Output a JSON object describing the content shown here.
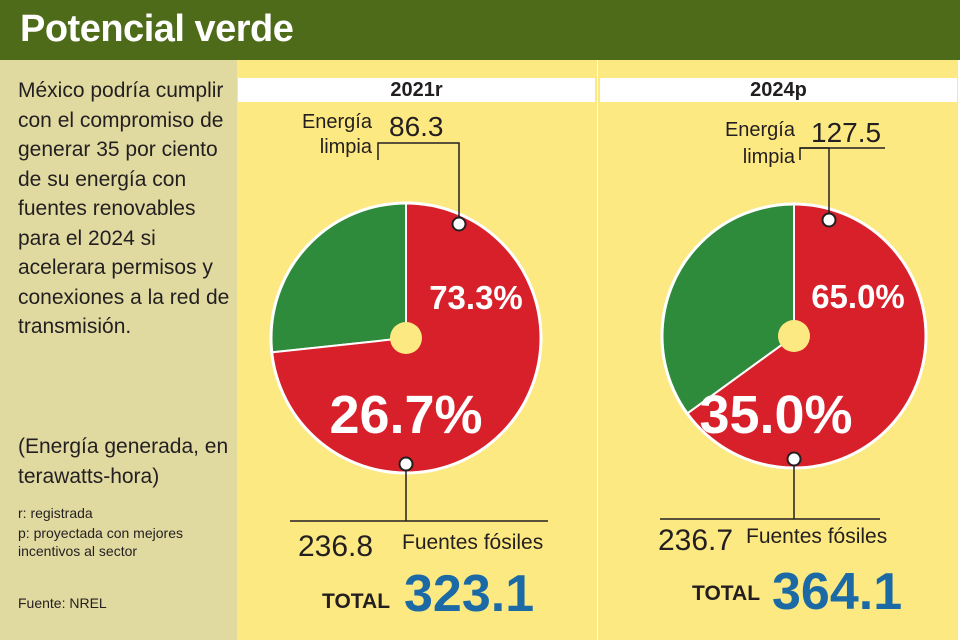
{
  "header": {
    "title": "Potencial verde"
  },
  "sidebar": {
    "intro": "México podría cumplir con el compromiso de generar 35 por ciento de su energía con fuentes renovables para el 2024 si acelerara permisos y conexiones a la red de transmisión.",
    "units_note": "(Energía generada, en terawatts-hora)",
    "legend_r": "r: registrada",
    "legend_p": "p: proyectada con mejores incentivos al sector",
    "source": "Fuente: NREL"
  },
  "colors": {
    "header": "#4e6b1a",
    "sidebar": "#e0d9a0",
    "panel": "#fde982",
    "clean": "#2e8b3c",
    "fossil": "#d7202a",
    "total": "#1b6aa5"
  },
  "chart_data": [
    {
      "type": "pie",
      "title": "2021r",
      "clean_label_line1": "Energía",
      "clean_label_line2": "limpia",
      "fossil_label": "Fuentes fósiles",
      "total_label": "TOTAL",
      "clean_value": "86.3",
      "fossil_value": "236.8",
      "total_value": "323.1",
      "slices": [
        {
          "name": "Energía limpia",
          "value": 86.3,
          "percent": 26.7,
          "percent_label": "26.7%",
          "color": "#2e8b3c"
        },
        {
          "name": "Fuentes fósiles",
          "value": 236.8,
          "percent": 73.3,
          "percent_label": "73.3%",
          "color": "#d7202a"
        }
      ]
    },
    {
      "type": "pie",
      "title": "2024p",
      "clean_label_line1": "Energía",
      "clean_label_line2": "limpia",
      "fossil_label": "Fuentes fósiles",
      "total_label": "TOTAL",
      "clean_value": "127.5",
      "fossil_value": "236.7",
      "total_value": "364.1",
      "slices": [
        {
          "name": "Energía limpia",
          "value": 127.5,
          "percent": 35.0,
          "percent_label": "35.0%",
          "color": "#2e8b3c"
        },
        {
          "name": "Fuentes fósiles",
          "value": 236.7,
          "percent": 65.0,
          "percent_label": "65.0%",
          "color": "#d7202a"
        }
      ]
    }
  ]
}
